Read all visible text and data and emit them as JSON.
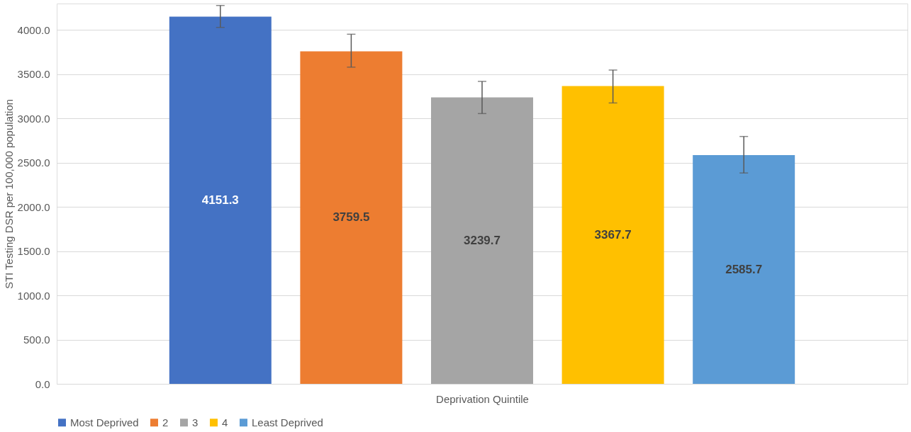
{
  "chart_data": {
    "type": "bar",
    "xlabel": "Deprivation Quintile",
    "ylabel": "STI Testing DSR per 100,000 population",
    "categories": [
      null
    ],
    "series": [
      {
        "name": "Most Deprived",
        "color": "#4472c4",
        "values": [
          4151.3
        ],
        "errors": [
          [
            4030,
            4278
          ]
        ]
      },
      {
        "name": "2",
        "color": "#ed7d31",
        "values": [
          3759.5
        ],
        "errors": [
          [
            3581,
            3953
          ]
        ]
      },
      {
        "name": "3",
        "color": "#a5a5a5",
        "values": [
          3239.7
        ],
        "errors": [
          [
            3056,
            3420
          ]
        ]
      },
      {
        "name": "4",
        "color": "#ffc000",
        "values": [
          3367.7
        ],
        "errors": [
          [
            3176,
            3548
          ]
        ]
      },
      {
        "name": "Least Deprived",
        "color": "#5b9bd5",
        "values": [
          2585.7
        ],
        "errors": [
          [
            2384,
            2797
          ]
        ]
      }
    ],
    "ylim": [
      0,
      4300
    ],
    "yticks": [
      {
        "value": 0,
        "label": "0.0"
      },
      {
        "value": 500,
        "label": "500.0"
      },
      {
        "value": 1000,
        "label": "1000.0"
      },
      {
        "value": 1500,
        "label": "1500.0"
      },
      {
        "value": 2000,
        "label": "2000.0"
      },
      {
        "value": 2500,
        "label": "2500.0"
      },
      {
        "value": 3000,
        "label": "3000.0"
      },
      {
        "value": 3500,
        "label": "3500.0"
      },
      {
        "value": 4000,
        "label": "4000.0"
      }
    ],
    "grid": "y",
    "legend": "bottom",
    "data_labels": true,
    "tick_labels": "y"
  }
}
